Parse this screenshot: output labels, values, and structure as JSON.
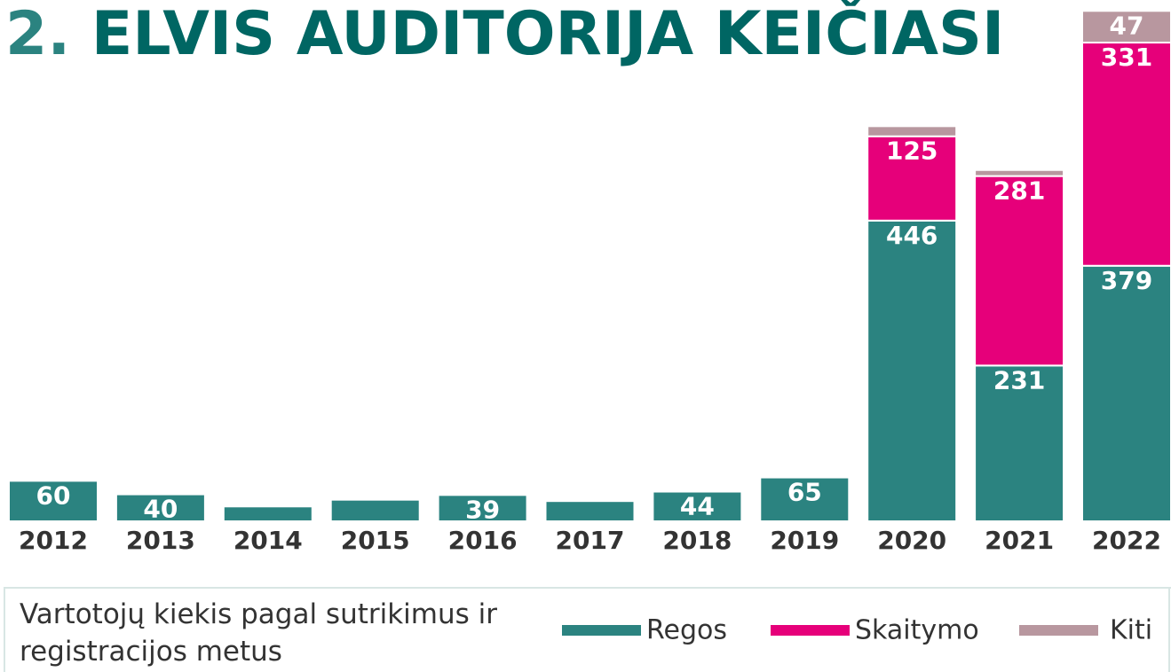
{
  "chart_data": {
    "type": "bar",
    "stacked": true,
    "title": "2. ELVIS AUDITORIJA KEIČIASI",
    "note": "Vartotojų kiekis pagal sutrikimus ir registracijos metus",
    "categories": [
      "2012",
      "2013",
      "2014",
      "2015",
      "2016",
      "2017",
      "2018",
      "2019",
      "2020",
      "2021",
      "2022"
    ],
    "series": [
      {
        "name": "Regos",
        "color": "#2b8380",
        "values": [
          60,
          40,
          22,
          32,
          39,
          30,
          44,
          65,
          446,
          231,
          379
        ]
      },
      {
        "name": "Skaitymo",
        "color": "#e6007a",
        "values": [
          0,
          0,
          0,
          0,
          0,
          0,
          0,
          0,
          125,
          281,
          331
        ]
      },
      {
        "name": "Kiti",
        "color": "#b8979f",
        "values": [
          0,
          0,
          0,
          0,
          0,
          0,
          0,
          0,
          15,
          9,
          47
        ]
      }
    ],
    "ylim": [
      0,
      760
    ]
  }
}
